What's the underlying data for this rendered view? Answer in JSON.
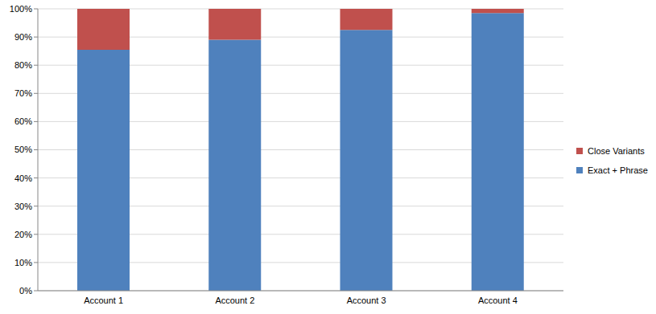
{
  "chart_data": {
    "type": "bar",
    "categories": [
      "Account 1",
      "Account 2",
      "Account 3",
      "Account 4"
    ],
    "series": [
      {
        "name": "Exact + Phrase",
        "color": "#4f81bd",
        "values": [
          85.5,
          89,
          92.5,
          98.5
        ]
      },
      {
        "name": "Close Variants",
        "color": "#c0504d",
        "values": [
          14.5,
          11,
          7.5,
          1.5
        ]
      }
    ],
    "ylim": [
      0,
      100
    ],
    "yticks": [
      {
        "value": 0,
        "label": "0%"
      },
      {
        "value": 10,
        "label": "10%"
      },
      {
        "value": 20,
        "label": "20%"
      },
      {
        "value": 30,
        "label": "30%"
      },
      {
        "value": 40,
        "label": "40%"
      },
      {
        "value": 50,
        "label": "50%"
      },
      {
        "value": 60,
        "label": "60%"
      },
      {
        "value": 70,
        "label": "70%"
      },
      {
        "value": 80,
        "label": "80%"
      },
      {
        "value": 90,
        "label": "90%"
      },
      {
        "value": 100,
        "label": "100%"
      }
    ],
    "stacked": true,
    "grid": true,
    "legend": "right"
  }
}
